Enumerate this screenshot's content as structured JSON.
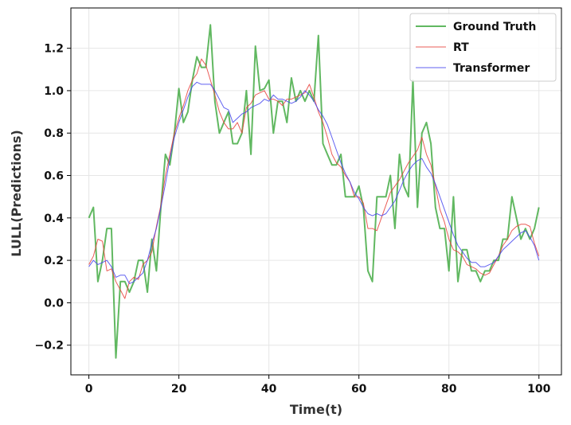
{
  "chart_data": {
    "type": "line",
    "title": "",
    "xlabel": "Time(t)",
    "ylabel": "LULL(Predictions)",
    "xlim": [
      -4,
      105
    ],
    "ylim": [
      -0.34,
      1.39
    ],
    "xticks": [
      0,
      20,
      40,
      60,
      80,
      100
    ],
    "yticks": [
      -0.2,
      0.0,
      0.2,
      0.4,
      0.6,
      0.8,
      1.0,
      1.2
    ],
    "ytick_labels": [
      "−0.2",
      "0.0",
      "0.2",
      "0.4",
      "0.6",
      "0.8",
      "1.0",
      "1.2"
    ],
    "grid": true,
    "legend_position": "top-right",
    "x": [
      0,
      1,
      2,
      3,
      4,
      5,
      6,
      7,
      8,
      9,
      10,
      11,
      12,
      13,
      14,
      15,
      16,
      17,
      18,
      19,
      20,
      21,
      22,
      23,
      24,
      25,
      26,
      27,
      28,
      29,
      30,
      31,
      32,
      33,
      34,
      35,
      36,
      37,
      38,
      39,
      40,
      41,
      42,
      43,
      44,
      45,
      46,
      47,
      48,
      49,
      50,
      51,
      52,
      53,
      54,
      55,
      56,
      57,
      58,
      59,
      60,
      61,
      62,
      63,
      64,
      65,
      66,
      67,
      68,
      69,
      70,
      71,
      72,
      73,
      74,
      75,
      76,
      77,
      78,
      79,
      80,
      81,
      82,
      83,
      84,
      85,
      86,
      87,
      88,
      89,
      90,
      91,
      92,
      93,
      94,
      95,
      96,
      97,
      98,
      99,
      100
    ],
    "series": [
      {
        "name": "Ground Truth",
        "color": "#2ca02c",
        "values": [
          0.4,
          0.45,
          0.1,
          0.2,
          0.35,
          0.35,
          -0.26,
          0.1,
          0.1,
          0.05,
          0.1,
          0.2,
          0.2,
          0.05,
          0.3,
          0.15,
          0.45,
          0.7,
          0.65,
          0.8,
          1.01,
          0.85,
          0.9,
          1.05,
          1.16,
          1.11,
          1.11,
          1.31,
          0.95,
          0.8,
          0.85,
          0.9,
          0.75,
          0.75,
          0.8,
          1.0,
          0.7,
          1.21,
          1.0,
          1.01,
          1.05,
          0.8,
          0.95,
          0.95,
          0.85,
          1.06,
          0.95,
          1.0,
          0.95,
          1.0,
          0.95,
          1.26,
          0.75,
          0.7,
          0.65,
          0.65,
          0.7,
          0.5,
          0.5,
          0.5,
          0.55,
          0.45,
          0.15,
          0.1,
          0.5,
          0.5,
          0.5,
          0.6,
          0.35,
          0.7,
          0.55,
          0.5,
          1.05,
          0.45,
          0.8,
          0.85,
          0.75,
          0.45,
          0.35,
          0.35,
          0.15,
          0.5,
          0.1,
          0.25,
          0.25,
          0.15,
          0.15,
          0.1,
          0.15,
          0.15,
          0.2,
          0.2,
          0.3,
          0.3,
          0.5,
          0.4,
          0.3,
          0.35,
          0.3,
          0.35,
          0.45
        ]
      },
      {
        "name": "RT",
        "color": "#e8403a",
        "values": [
          0.18,
          0.22,
          0.3,
          0.29,
          0.15,
          0.16,
          0.1,
          0.06,
          0.02,
          0.1,
          0.12,
          0.11,
          0.18,
          0.2,
          0.24,
          0.36,
          0.46,
          0.6,
          0.7,
          0.8,
          0.87,
          0.93,
          1.0,
          1.05,
          1.08,
          1.15,
          1.12,
          1.05,
          0.98,
          0.9,
          0.85,
          0.82,
          0.82,
          0.85,
          0.8,
          0.92,
          0.94,
          0.98,
          0.99,
          1.0,
          0.96,
          0.96,
          0.95,
          0.93,
          0.96,
          0.96,
          0.97,
          0.98,
          0.99,
          1.03,
          0.97,
          0.9,
          0.85,
          0.78,
          0.7,
          0.66,
          0.64,
          0.6,
          0.57,
          0.5,
          0.5,
          0.47,
          0.35,
          0.35,
          0.34,
          0.4,
          0.46,
          0.52,
          0.55,
          0.58,
          0.62,
          0.66,
          0.69,
          0.72,
          0.78,
          0.7,
          0.65,
          0.55,
          0.44,
          0.38,
          0.3,
          0.25,
          0.24,
          0.22,
          0.18,
          0.17,
          0.16,
          0.14,
          0.13,
          0.14,
          0.18,
          0.22,
          0.27,
          0.3,
          0.34,
          0.36,
          0.37,
          0.37,
          0.36,
          0.28,
          0.22
        ]
      },
      {
        "name": "Transformer",
        "color": "#4444ee",
        "values": [
          0.17,
          0.2,
          0.18,
          0.19,
          0.2,
          0.17,
          0.12,
          0.13,
          0.13,
          0.09,
          0.1,
          0.12,
          0.14,
          0.2,
          0.28,
          0.35,
          0.45,
          0.56,
          0.68,
          0.78,
          0.85,
          0.91,
          0.97,
          1.02,
          1.04,
          1.03,
          1.03,
          1.03,
          1.0,
          0.96,
          0.92,
          0.91,
          0.85,
          0.87,
          0.89,
          0.9,
          0.92,
          0.93,
          0.94,
          0.96,
          0.95,
          0.98,
          0.96,
          0.96,
          0.95,
          0.94,
          0.95,
          0.97,
          1.0,
          0.98,
          0.95,
          0.91,
          0.88,
          0.84,
          0.78,
          0.72,
          0.66,
          0.61,
          0.57,
          0.52,
          0.49,
          0.45,
          0.42,
          0.41,
          0.42,
          0.41,
          0.42,
          0.45,
          0.48,
          0.53,
          0.58,
          0.62,
          0.65,
          0.67,
          0.68,
          0.64,
          0.61,
          0.56,
          0.5,
          0.44,
          0.38,
          0.32,
          0.27,
          0.24,
          0.21,
          0.19,
          0.19,
          0.17,
          0.17,
          0.18,
          0.19,
          0.22,
          0.25,
          0.27,
          0.29,
          0.31,
          0.33,
          0.34,
          0.31,
          0.27,
          0.2
        ]
      }
    ]
  }
}
